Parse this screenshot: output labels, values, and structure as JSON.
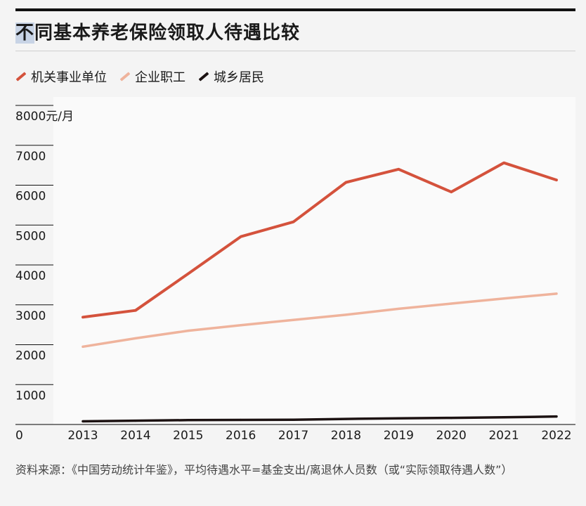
{
  "title_highlight": "不",
  "title_rest": "同基本养老保险领取人待遇比较",
  "legend": [
    {
      "label": "机关事业单位",
      "color": "#d4523c"
    },
    {
      "label": "企业职工",
      "color": "#efb39c"
    },
    {
      "label": "城乡居民",
      "color": "#1c1212"
    }
  ],
  "footnote": "资料来源：《中国劳动统计年鉴》，平均待遇水平=基金支出/离退休人员数（或“实际领取待遇人数”）",
  "chart_data": {
    "type": "line",
    "title": "不同基本养老保险领取人待遇比较",
    "unit_label": "元/月",
    "x": [
      "2013",
      "2014",
      "2015",
      "2016",
      "2017",
      "2018",
      "2019",
      "2020",
      "2021",
      "2022"
    ],
    "y_ticks": [
      0,
      1000,
      2000,
      3000,
      4000,
      5000,
      6000,
      7000,
      8000
    ],
    "ylim": [
      0,
      8000
    ],
    "grid": false,
    "legend_position": "top-left",
    "series": [
      {
        "name": "机关事业单位",
        "color": "#d4523c",
        "values": [
          2690,
          2860,
          3780,
          4710,
          5080,
          6070,
          6400,
          5830,
          6560,
          6130
        ]
      },
      {
        "name": "企业职工",
        "color": "#efb39c",
        "values": [
          1950,
          2160,
          2350,
          2490,
          2620,
          2750,
          2900,
          3030,
          3160,
          3280
        ]
      },
      {
        "name": "城乡居民",
        "color": "#1c1212",
        "values": [
          80,
          95,
          110,
          115,
          120,
          140,
          155,
          165,
          180,
          200
        ]
      }
    ]
  }
}
